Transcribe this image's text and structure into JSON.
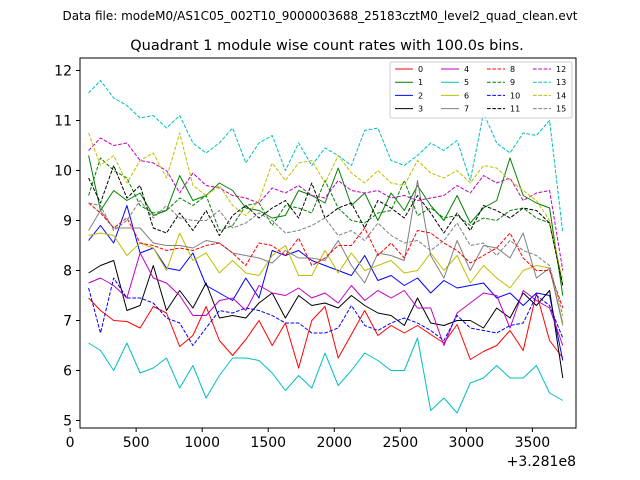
{
  "file_label": "Data file: modeM0/AS1C05_002T10_9000003688_25183cztM0_level2_quad_clean.evt",
  "chart_data": {
    "type": "line",
    "title": "Quadrant 1 module wise count rates with 100.0s bins.",
    "xlabel": "",
    "ylabel": "",
    "x_offset_label": "+3.281e8",
    "xlim": [
      75,
      3830
    ],
    "ylim": [
      4.85,
      12.25
    ],
    "xticks": [
      0,
      500,
      1000,
      1500,
      2000,
      2500,
      3000,
      3500
    ],
    "yticks": [
      5,
      6,
      7,
      8,
      9,
      10,
      11,
      12
    ],
    "legend_position": "top-right",
    "x": [
      140,
      230,
      330,
      430,
      530,
      630,
      730,
      830,
      930,
      1030,
      1130,
      1230,
      1330,
      1430,
      1530,
      1630,
      1730,
      1830,
      1930,
      2030,
      2130,
      2230,
      2330,
      2430,
      2530,
      2630,
      2730,
      2830,
      2930,
      3030,
      3130,
      3230,
      3330,
      3430,
      3530,
      3630,
      3730
    ],
    "series": [
      {
        "name": "0",
        "color": "#ff0000",
        "dash": "solid",
        "values": [
          7.45,
          7.2,
          7.0,
          6.98,
          6.85,
          7.28,
          7.15,
          6.48,
          6.7,
          7.28,
          6.6,
          6.3,
          6.62,
          7.0,
          6.5,
          6.95,
          6.05,
          7.0,
          7.28,
          6.25,
          6.72,
          7.2,
          6.7,
          6.9,
          6.75,
          6.9,
          6.72,
          6.55,
          6.92,
          6.22,
          6.38,
          6.5,
          6.8,
          6.4,
          7.55,
          6.6,
          6.25
        ]
      },
      {
        "name": "1",
        "color": "#008000",
        "dash": "solid",
        "values": [
          10.3,
          9.2,
          9.6,
          9.4,
          9.55,
          9.1,
          9.2,
          9.9,
          9.4,
          9.5,
          9.75,
          9.6,
          9.25,
          9.2,
          9.05,
          9.1,
          9.6,
          9.5,
          9.35,
          10.05,
          9.3,
          9.55,
          9.0,
          9.55,
          9.2,
          9.7,
          9.3,
          9.0,
          9.5,
          8.95,
          9.25,
          9.4,
          10.25,
          9.5,
          9.35,
          9.25,
          7.5
        ]
      },
      {
        "name": "2",
        "color": "#0000ff",
        "dash": "solid",
        "values": [
          8.6,
          8.9,
          8.55,
          9.3,
          8.35,
          8.45,
          8.05,
          8.0,
          8.35,
          7.7,
          7.55,
          7.4,
          7.85,
          7.45,
          8.4,
          8.3,
          8.4,
          8.2,
          8.1,
          8.0,
          7.9,
          8.3,
          7.8,
          7.9,
          7.7,
          7.85,
          7.55,
          7.8,
          7.65,
          7.7,
          7.75,
          7.45,
          7.55,
          7.3,
          7.55,
          7.5,
          6.2
        ]
      },
      {
        "name": "3",
        "color": "#000000",
        "dash": "solid",
        "values": [
          7.95,
          8.1,
          8.2,
          7.2,
          7.3,
          8.1,
          7.2,
          7.6,
          7.25,
          7.75,
          7.05,
          7.1,
          7.05,
          7.35,
          7.55,
          7.05,
          7.5,
          7.3,
          7.35,
          7.25,
          7.5,
          7.3,
          7.15,
          7.1,
          6.9,
          7.45,
          6.95,
          6.9,
          7.0,
          7.0,
          6.85,
          7.25,
          7.05,
          7.55,
          7.3,
          7.6,
          5.85
        ]
      },
      {
        "name": "4",
        "color": "#bf00bf",
        "dash": "solid",
        "values": [
          7.75,
          7.85,
          7.7,
          7.45,
          8.35,
          7.85,
          7.75,
          7.5,
          7.1,
          7.1,
          7.4,
          7.45,
          7.2,
          7.7,
          7.55,
          7.5,
          7.65,
          7.45,
          7.55,
          7.35,
          7.7,
          7.4,
          7.6,
          7.45,
          7.6,
          7.25,
          7.25,
          6.5,
          7.15,
          7.35,
          7.55,
          7.5,
          6.85,
          7.6,
          7.4,
          7.25,
          6.5
        ]
      },
      {
        "name": "5",
        "color": "#00bfbf",
        "dash": "solid",
        "values": [
          6.55,
          6.4,
          6.0,
          6.55,
          5.95,
          6.05,
          6.25,
          5.65,
          6.1,
          5.45,
          5.9,
          6.25,
          6.25,
          6.2,
          5.95,
          5.6,
          5.9,
          5.65,
          6.35,
          5.7,
          6.0,
          6.35,
          6.2,
          6.0,
          6.0,
          6.65,
          5.2,
          5.45,
          5.15,
          5.75,
          5.85,
          6.1,
          5.85,
          5.85,
          6.1,
          5.55,
          5.4
        ]
      },
      {
        "name": "6",
        "color": "#bfbf00",
        "dash": "solid",
        "values": [
          8.7,
          8.75,
          8.7,
          8.3,
          8.55,
          8.45,
          8.0,
          8.75,
          8.2,
          8.35,
          7.95,
          8.2,
          7.95,
          7.9,
          8.3,
          8.5,
          7.9,
          7.9,
          8.4,
          7.95,
          8.35,
          8.0,
          8.1,
          8.2,
          7.95,
          8.0,
          8.35,
          8.0,
          8.3,
          7.75,
          8.1,
          7.85,
          7.65,
          8.0,
          8.1,
          8.05,
          6.95
        ]
      },
      {
        "name": "7",
        "color": "#808080",
        "dash": "solid",
        "values": [
          8.8,
          9.2,
          8.85,
          8.85,
          8.85,
          8.55,
          8.5,
          8.5,
          8.45,
          8.6,
          8.55,
          8.35,
          8.3,
          8.25,
          8.15,
          8.4,
          8.25,
          8.25,
          8.2,
          8.6,
          8.1,
          7.75,
          8.35,
          8.3,
          8.2,
          9.8,
          8.3,
          7.85,
          8.6,
          8.0,
          8.5,
          8.45,
          8.25,
          8.75,
          7.85,
          8.05,
          6.9
        ]
      },
      {
        "name": "8",
        "color": "#ff0000",
        "dash": "dashed",
        "values": [
          9.35,
          9.15,
          8.85,
          9.05,
          8.55,
          8.5,
          8.4,
          8.45,
          8.4,
          8.5,
          8.55,
          8.35,
          8.1,
          8.55,
          8.5,
          8.3,
          8.65,
          8.1,
          8.25,
          8.5,
          8.5,
          8.85,
          8.3,
          8.55,
          8.25,
          8.8,
          8.75,
          8.55,
          8.4,
          8.15,
          8.3,
          8.45,
          8.75,
          8.25,
          8.0,
          8.0,
          7.25
        ]
      },
      {
        "name": "9",
        "color": "#008000",
        "dash": "dashed",
        "values": [
          9.5,
          10.25,
          10.0,
          9.85,
          9.3,
          9.15,
          9.2,
          9.45,
          9.3,
          9.5,
          8.8,
          8.9,
          9.3,
          9.35,
          8.9,
          9.3,
          9.25,
          9.15,
          9.8,
          9.25,
          9.0,
          8.95,
          9.15,
          9.2,
          9.8,
          9.1,
          9.25,
          9.05,
          9.1,
          8.9,
          9.05,
          9.0,
          9.2,
          9.25,
          9.05,
          8.95,
          7.7
        ]
      },
      {
        "name": "10",
        "color": "#0000ff",
        "dash": "dashed",
        "values": [
          7.65,
          6.75,
          7.85,
          7.45,
          7.45,
          7.35,
          7.05,
          6.95,
          6.5,
          6.85,
          7.2,
          7.15,
          7.25,
          7.2,
          7.1,
          6.95,
          6.95,
          6.75,
          6.75,
          6.85,
          7.3,
          6.9,
          6.8,
          6.95,
          7.05,
          6.95,
          6.8,
          6.6,
          7.1,
          6.85,
          6.8,
          6.75,
          6.9,
          6.95,
          7.5,
          7.3,
          6.65
        ]
      },
      {
        "name": "11",
        "color": "#000000",
        "dash": "dashed",
        "values": [
          9.85,
          9.35,
          10.1,
          9.45,
          9.7,
          8.85,
          8.75,
          9.15,
          8.8,
          9.2,
          8.7,
          9.1,
          9.3,
          9.05,
          9.25,
          9.4,
          9.05,
          9.75,
          9.05,
          9.25,
          9.35,
          8.85,
          9.4,
          9.25,
          9.05,
          9.5,
          9.15,
          8.75,
          9.15,
          8.8,
          9.3,
          9.2,
          9.05,
          9.25,
          9.2,
          8.95,
          7.7
        ]
      },
      {
        "name": "12",
        "color": "#bf00bf",
        "dash": "dashed",
        "values": [
          10.4,
          10.65,
          10.5,
          10.55,
          10.2,
          10.15,
          10.0,
          9.55,
          9.95,
          9.7,
          9.65,
          9.5,
          9.45,
          9.35,
          9.65,
          9.55,
          9.7,
          9.5,
          9.45,
          9.8,
          9.6,
          9.55,
          9.6,
          9.45,
          9.5,
          9.4,
          9.45,
          9.5,
          9.7,
          9.55,
          9.9,
          9.75,
          9.85,
          9.4,
          9.55,
          9.6,
          8.0
        ]
      },
      {
        "name": "13",
        "color": "#00bfbf",
        "dash": "dashed",
        "values": [
          11.55,
          11.8,
          11.45,
          11.3,
          11.05,
          11.1,
          10.85,
          11.1,
          10.55,
          10.35,
          10.55,
          10.85,
          10.15,
          10.55,
          10.7,
          10.0,
          10.55,
          10.1,
          10.45,
          10.3,
          10.1,
          10.8,
          10.85,
          10.2,
          10.1,
          10.3,
          10.55,
          10.4,
          10.6,
          9.8,
          11.15,
          10.55,
          10.35,
          10.75,
          10.7,
          11.0,
          8.75
        ]
      },
      {
        "name": "14",
        "color": "#bfbf00",
        "dash": "dashed",
        "values": [
          10.75,
          10.1,
          10.3,
          9.75,
          10.2,
          10.35,
          9.85,
          10.75,
          9.7,
          9.5,
          9.7,
          9.3,
          9.1,
          9.4,
          10.15,
          9.8,
          10.15,
          10.2,
          9.75,
          10.3,
          9.95,
          9.75,
          10.0,
          9.75,
          9.7,
          10.2,
          9.95,
          9.85,
          10.0,
          9.75,
          10.1,
          10.05,
          9.8,
          9.6,
          9.4,
          9.0,
          7.8
        ]
      },
      {
        "name": "15",
        "color": "#808080",
        "dash": "dashed",
        "values": [
          9.35,
          9.3,
          8.8,
          9.0,
          9.4,
          9.05,
          9.3,
          9.05,
          9.0,
          9.0,
          9.2,
          8.85,
          8.95,
          9.15,
          9.0,
          8.75,
          8.8,
          8.9,
          9.05,
          8.7,
          8.8,
          8.6,
          8.95,
          8.7,
          8.55,
          8.6,
          8.4,
          8.6,
          8.95,
          8.5,
          8.55,
          8.3,
          8.6,
          8.4,
          8.3,
          8.1,
          7.1
        ]
      }
    ]
  }
}
